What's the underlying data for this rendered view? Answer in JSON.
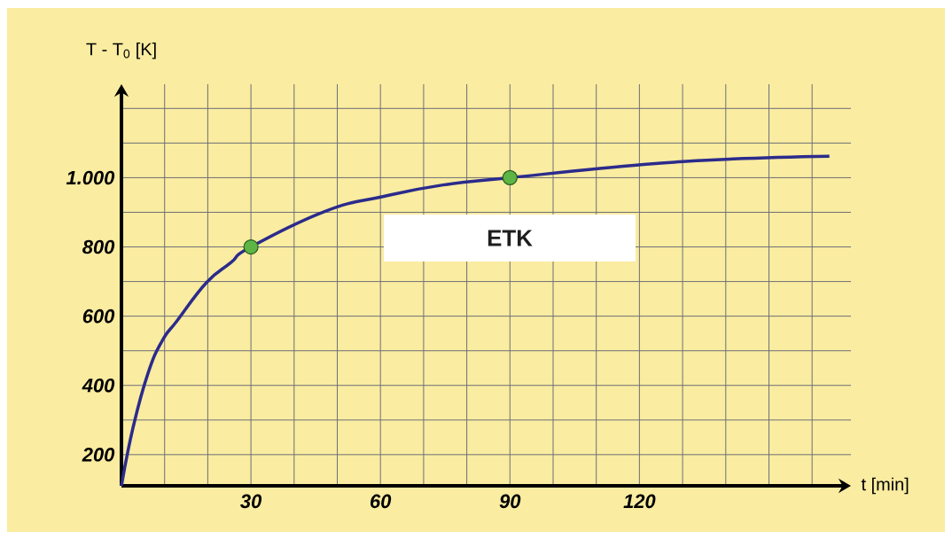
{
  "chart_data": {
    "type": "line",
    "xlabel": "t [min]",
    "ylabel": "T - T$_{0}$ [K]",
    "xlim": [
      0,
      169
    ],
    "ylim": [
      110,
      1270
    ],
    "xticks": [
      {
        "value": 10,
        "label": null
      },
      {
        "value": 20,
        "label": null
      },
      30,
      {
        "value": 40,
        "label": null
      },
      {
        "value": 50,
        "label": null
      },
      60,
      {
        "value": 70,
        "label": null
      },
      {
        "value": 80,
        "label": null
      },
      90,
      {
        "value": 100,
        "label": null
      },
      {
        "value": 110,
        "label": null
      },
      120,
      {
        "value": 130,
        "label": null
      },
      {
        "value": 140,
        "label": null
      },
      {
        "value": 150,
        "label": null
      },
      {
        "value": 160,
        "label": null
      }
    ],
    "yticks": [
      200,
      {
        "value": 300,
        "label": null
      },
      400,
      {
        "value": 500,
        "label": null
      },
      600,
      {
        "value": 700,
        "label": null
      },
      800,
      {
        "value": 900,
        "label": null
      },
      {
        "value": 1000,
        "label": "1.000"
      },
      {
        "value": 1100,
        "label": null
      },
      {
        "value": 1200,
        "label": null
      }
    ],
    "grid": true,
    "series": [
      {
        "type": "line",
        "color": "#2b2b8c",
        "marker": "none",
        "x": [
          0,
          2.7,
          6.1,
          9.4,
          12.9,
          19.7,
          25.3,
          30,
          47.2,
          60.8,
          74.5,
          90,
          121,
          141.7,
          164
        ],
        "values": [
          110,
          279,
          433,
          528,
          587,
          697,
          754,
          800,
          903,
          946,
          979,
          1000,
          1038,
          1054,
          1062
        ]
      },
      {
        "type": "scatter",
        "color": "#5cb545",
        "marker": "circle",
        "x": [
          30,
          90
        ],
        "values": [
          800,
          1000
        ]
      }
    ],
    "annotations": [
      {
        "text": "ETK"
      }
    ]
  }
}
